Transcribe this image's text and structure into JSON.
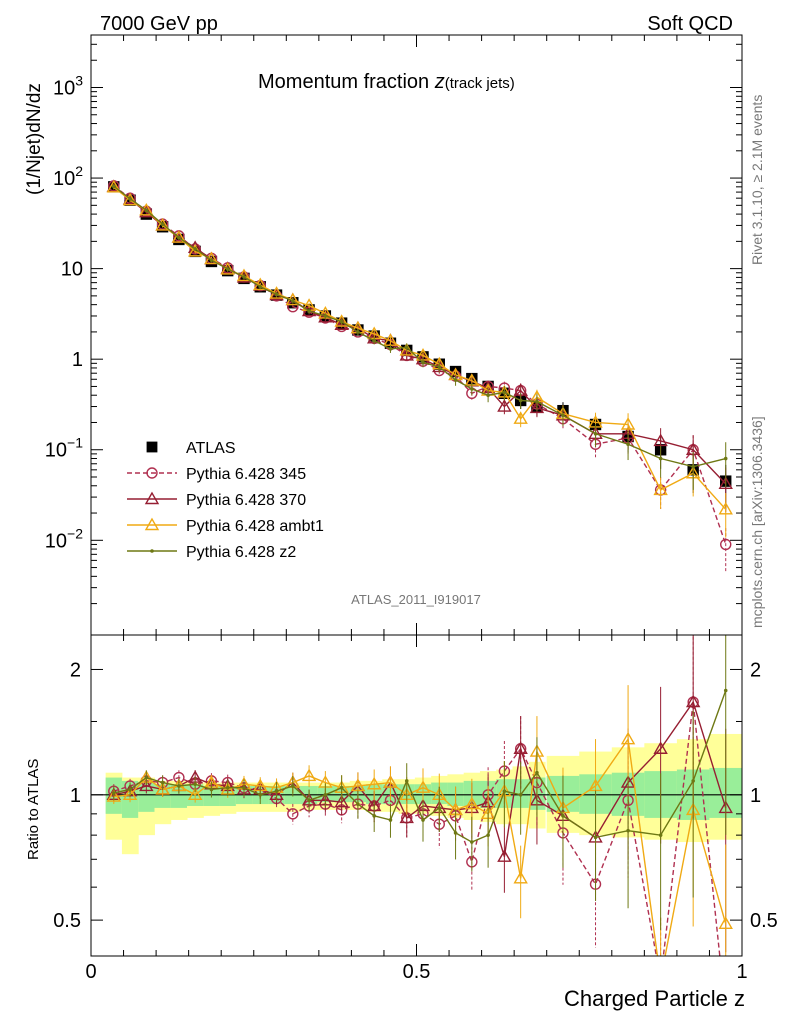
{
  "header": {
    "left": "7000 GeV pp",
    "right": "Soft QCD"
  },
  "side": {
    "rivet": "Rivet 3.1.10, ≥ 2.1M events",
    "mcplots": "mcplots.cern.ch [arXiv:1306.3436]"
  },
  "analysis_id": "ATLAS_2011_I919017",
  "chart_data": [
    {
      "type": "line",
      "title_main": "Momentum fraction ",
      "title_var": "z",
      "title_sub": "(track jets)",
      "xlabel": "",
      "ylabel": "(1/Njet)dN/dz",
      "xlim": [
        0,
        1
      ],
      "ylim": [
        0.0009,
        3800
      ],
      "yscale": "log",
      "ytick_values": [
        0.01,
        0.1,
        1,
        10,
        100,
        1000
      ],
      "ytick_labels": [
        [
          "10",
          "−2"
        ],
        [
          "10",
          "−1"
        ],
        [
          "1",
          ""
        ],
        [
          "10",
          ""
        ],
        [
          "10",
          "2"
        ],
        [
          "10",
          "3"
        ]
      ],
      "x": [
        0.035,
        0.06,
        0.085,
        0.11,
        0.135,
        0.16,
        0.185,
        0.21,
        0.235,
        0.26,
        0.285,
        0.31,
        0.335,
        0.36,
        0.385,
        0.41,
        0.435,
        0.46,
        0.485,
        0.51,
        0.535,
        0.56,
        0.585,
        0.61,
        0.635,
        0.66,
        0.685,
        0.725,
        0.775,
        0.825,
        0.875,
        0.925,
        0.975
      ],
      "series": [
        {
          "name": "ATLAS",
          "color": "#000000",
          "marker": "square",
          "dash": "none",
          "values": [
            80,
            57,
            40,
            29,
            21,
            15.5,
            12,
            9.5,
            7.8,
            6.3,
            5.1,
            4.2,
            3.5,
            3.0,
            2.5,
            2.1,
            1.8,
            1.5,
            1.25,
            1.06,
            0.88,
            0.73,
            0.61,
            0.5,
            0.42,
            0.35,
            0.3,
            0.27,
            0.19,
            0.14,
            0.1,
            0.06,
            0.045
          ]
        },
        {
          "name": "Pythia 6.428 345",
          "color": "#b03050",
          "marker": "circle",
          "dash": "5,3",
          "values": [
            82,
            60,
            43,
            31,
            23,
            16.5,
            13,
            10.2,
            8.1,
            6.5,
            5.0,
            3.8,
            3.3,
            2.85,
            2.3,
            2.0,
            1.7,
            1.45,
            1.1,
            0.95,
            0.75,
            0.65,
            0.42,
            0.5,
            0.48,
            0.45,
            0.32,
            0.22,
            0.115,
            0.135,
            0.036,
            0.1,
            0.009
          ]
        },
        {
          "name": "Pythia 6.428 370",
          "color": "#961e32",
          "marker": "triangle",
          "dash": "none",
          "values": [
            80,
            58,
            42,
            30,
            22,
            17,
            12.7,
            10,
            8,
            6.5,
            5.1,
            4.5,
            3.4,
            2.9,
            2.4,
            2.2,
            1.7,
            1.6,
            1.1,
            1.0,
            0.82,
            0.67,
            0.57,
            0.48,
            0.3,
            0.45,
            0.29,
            0.24,
            0.15,
            0.15,
            0.125,
            0.1,
            0.042
          ]
        },
        {
          "name": "Pythia 6.428 ambt1",
          "color": "#f0aa14",
          "marker": "triangle",
          "dash": "none",
          "values": [
            79,
            57,
            44,
            30,
            22,
            15.5,
            12.8,
            9.8,
            8.3,
            6.6,
            5.3,
            4.5,
            3.9,
            3.2,
            2.6,
            2.2,
            1.9,
            1.6,
            1.25,
            1.1,
            0.88,
            0.67,
            0.58,
            0.45,
            0.43,
            0.22,
            0.38,
            0.25,
            0.2,
            0.19,
            0.036,
            0.055,
            0.022
          ]
        },
        {
          "name": "Pythia 6.428 z2",
          "color": "#6e7814",
          "marker": "dot",
          "dash": "none",
          "values": [
            81,
            59,
            44,
            31,
            22,
            16.5,
            12.4,
            9.9,
            8.1,
            6.3,
            5.2,
            4.4,
            3.4,
            3.0,
            2.6,
            2.0,
            1.6,
            1.3,
            1.35,
            0.92,
            0.82,
            0.59,
            0.47,
            0.4,
            0.43,
            0.35,
            0.34,
            0.24,
            0.15,
            0.115,
            0.08,
            0.065,
            0.08
          ]
        }
      ]
    },
    {
      "type": "line",
      "title": "",
      "xlabel": "Charged Particle z",
      "ylabel": "Ratio to ATLAS",
      "xlim": [
        0,
        1
      ],
      "ylim": [
        0.41,
        2.42
      ],
      "yscale": "log",
      "ytick_values": [
        0.5,
        1,
        2
      ],
      "ytick_labels": [
        "0.5",
        "1",
        "2"
      ],
      "xtick_values": [
        0,
        0.5,
        1
      ],
      "xtick_labels": [
        "0",
        "0.5",
        "1"
      ],
      "x": [
        0.035,
        0.06,
        0.085,
        0.11,
        0.135,
        0.16,
        0.185,
        0.21,
        0.235,
        0.26,
        0.285,
        0.31,
        0.335,
        0.36,
        0.385,
        0.41,
        0.435,
        0.46,
        0.485,
        0.51,
        0.535,
        0.56,
        0.585,
        0.61,
        0.635,
        0.66,
        0.685,
        0.725,
        0.775,
        0.825,
        0.875,
        0.925,
        0.975
      ],
      "band_green": [
        [
          0.9,
          1.1
        ],
        [
          0.88,
          1.08
        ],
        [
          0.91,
          1.07
        ],
        [
          0.93,
          1.06
        ],
        [
          0.93,
          1.06
        ],
        [
          0.94,
          1.06
        ],
        [
          0.94,
          1.05
        ],
        [
          0.94,
          1.05
        ],
        [
          0.95,
          1.05
        ],
        [
          0.95,
          1.05
        ],
        [
          0.95,
          1.05
        ],
        [
          0.95,
          1.05
        ],
        [
          0.95,
          1.05
        ],
        [
          0.96,
          1.05
        ],
        [
          0.96,
          1.05
        ],
        [
          0.96,
          1.05
        ],
        [
          0.95,
          1.06
        ],
        [
          0.95,
          1.06
        ],
        [
          0.95,
          1.06
        ],
        [
          0.95,
          1.06
        ],
        [
          0.95,
          1.07
        ],
        [
          0.94,
          1.07
        ],
        [
          0.94,
          1.08
        ],
        [
          0.93,
          1.08
        ],
        [
          0.93,
          1.09
        ],
        [
          0.93,
          1.09
        ],
        [
          0.92,
          1.1
        ],
        [
          0.91,
          1.11
        ],
        [
          0.9,
          1.12
        ],
        [
          0.89,
          1.13
        ],
        [
          0.88,
          1.14
        ],
        [
          0.87,
          1.15
        ],
        [
          0.88,
          1.16
        ]
      ],
      "band_yellow": [
        [
          0.78,
          1.13
        ],
        [
          0.72,
          1.1
        ],
        [
          0.8,
          1.1
        ],
        [
          0.85,
          1.08
        ],
        [
          0.87,
          1.08
        ],
        [
          0.88,
          1.07
        ],
        [
          0.89,
          1.07
        ],
        [
          0.9,
          1.07
        ],
        [
          0.91,
          1.07
        ],
        [
          0.91,
          1.07
        ],
        [
          0.91,
          1.07
        ],
        [
          0.91,
          1.07
        ],
        [
          0.92,
          1.07
        ],
        [
          0.92,
          1.07
        ],
        [
          0.92,
          1.07
        ],
        [
          0.92,
          1.08
        ],
        [
          0.91,
          1.08
        ],
        [
          0.91,
          1.09
        ],
        [
          0.9,
          1.09
        ],
        [
          0.9,
          1.1
        ],
        [
          0.89,
          1.11
        ],
        [
          0.88,
          1.12
        ],
        [
          0.87,
          1.13
        ],
        [
          0.86,
          1.14
        ],
        [
          0.85,
          1.15
        ],
        [
          0.85,
          1.17
        ],
        [
          0.83,
          1.2
        ],
        [
          0.81,
          1.24
        ],
        [
          0.8,
          1.27
        ],
        [
          0.79,
          1.3
        ],
        [
          0.78,
          1.33
        ],
        [
          0.77,
          1.36
        ],
        [
          0.78,
          1.4
        ]
      ],
      "series": [
        {
          "name": "Pythia 6.428 345",
          "color": "#b03050",
          "marker": "circle",
          "dash": "5,3",
          "values": [
            1.02,
            1.05,
            1.08,
            1.07,
            1.1,
            1.06,
            1.08,
            1.07,
            1.04,
            1.03,
            0.98,
            0.9,
            0.94,
            0.95,
            0.92,
            0.95,
            0.94,
            0.97,
            0.88,
            0.9,
            0.85,
            0.89,
            0.69,
            1.0,
            1.14,
            1.29,
            1.07,
            0.81,
            0.61,
            0.97,
            0.36,
            1.67,
            0.2
          ]
        },
        {
          "name": "Pythia 6.428 370",
          "color": "#961e32",
          "marker": "triangle",
          "dash": "none",
          "values": [
            1.0,
            1.02,
            1.05,
            1.03,
            1.05,
            1.1,
            1.06,
            1.05,
            1.03,
            1.03,
            1.0,
            1.07,
            0.97,
            0.97,
            0.96,
            1.05,
            0.94,
            1.07,
            0.88,
            0.94,
            0.93,
            0.92,
            0.93,
            0.96,
            0.71,
            1.29,
            0.97,
            0.89,
            0.79,
            1.07,
            1.29,
            1.67,
            0.93
          ]
        },
        {
          "name": "Pythia 6.428 ambt1",
          "color": "#f0aa14",
          "marker": "triangle",
          "dash": "none",
          "values": [
            0.99,
            1.0,
            1.1,
            1.03,
            1.05,
            1.0,
            1.07,
            1.03,
            1.06,
            1.05,
            1.04,
            1.07,
            1.11,
            1.07,
            1.04,
            1.05,
            1.06,
            1.07,
            1.0,
            1.04,
            1.0,
            0.92,
            0.95,
            0.9,
            1.02,
            0.63,
            1.27,
            0.93,
            1.05,
            1.36,
            0.36,
            0.92,
            0.49
          ]
        },
        {
          "name": "Pythia 6.428 z2",
          "color": "#6e7814",
          "marker": "dot",
          "dash": "none",
          "values": [
            1.01,
            1.03,
            1.1,
            1.07,
            1.05,
            1.06,
            1.03,
            1.04,
            1.04,
            1.0,
            1.02,
            1.05,
            0.97,
            1.0,
            1.04,
            0.95,
            0.89,
            0.87,
            1.08,
            0.87,
            0.93,
            0.81,
            0.77,
            0.8,
            1.02,
            1.0,
            1.13,
            0.89,
            0.79,
            0.82,
            0.8,
            1.08,
            1.78
          ]
        }
      ]
    }
  ]
}
